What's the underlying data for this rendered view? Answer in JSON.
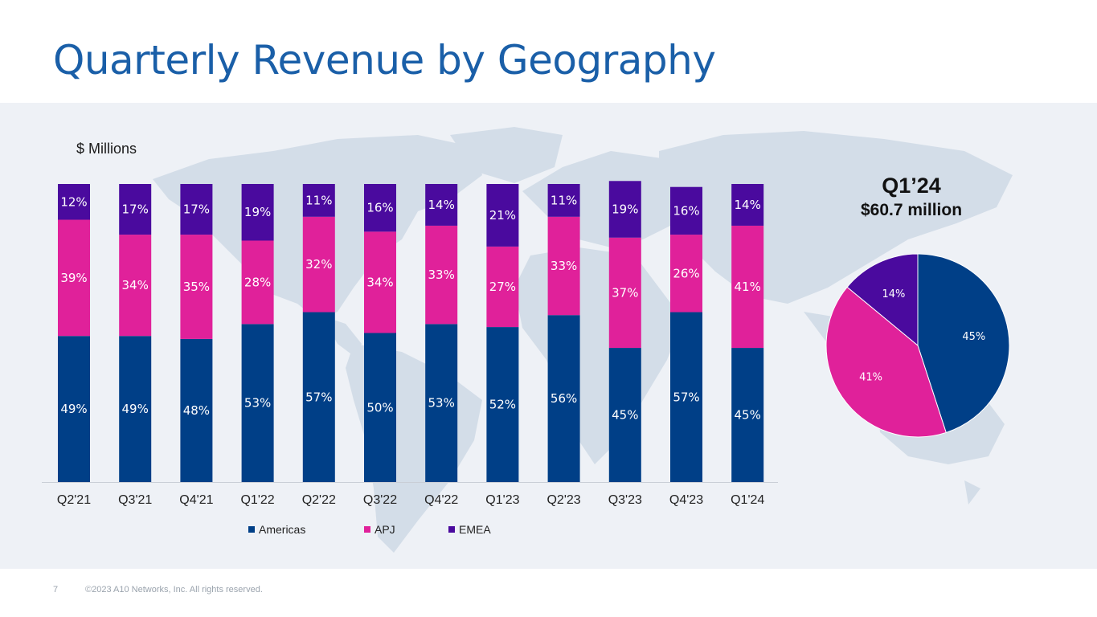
{
  "page": {
    "title": "Quarterly Revenue by Geography",
    "unit_label": "$ Millions",
    "page_number": "7",
    "copyright": "©2023 A10 Networks, Inc. All rights reserved."
  },
  "colors": {
    "Americas": "#003f87",
    "APJ": "#e0219a",
    "EMEA": "#4a0a9e",
    "title": "#1a5fa8"
  },
  "chart_data": [
    {
      "type": "bar",
      "stacked": true,
      "title": "Quarterly Revenue by Geography",
      "ylabel": "$ Millions",
      "ylim": [
        0,
        100
      ],
      "categories": [
        "Q2'21",
        "Q3'21",
        "Q4'21",
        "Q1'22",
        "Q2'22",
        "Q3'22",
        "Q4'22",
        "Q1'23",
        "Q2'23",
        "Q3'23",
        "Q4'23",
        "Q1'24"
      ],
      "series": [
        {
          "name": "Americas",
          "values": [
            49,
            49,
            48,
            53,
            57,
            50,
            53,
            52,
            56,
            45,
            57,
            45
          ],
          "labels": [
            "49%",
            "49%",
            "48%",
            "53%",
            "57%",
            "50%",
            "53%",
            "52%",
            "56%",
            "45%",
            "57%",
            "45%"
          ]
        },
        {
          "name": "APJ",
          "values": [
            39,
            34,
            35,
            28,
            32,
            34,
            33,
            27,
            33,
            37,
            26,
            41
          ],
          "labels": [
            "39%",
            "34%",
            "35%",
            "28%",
            "32%",
            "34%",
            "33%",
            "27%",
            "33%",
            "37%",
            "26%",
            "41%"
          ]
        },
        {
          "name": "EMEA",
          "values": [
            12,
            17,
            17,
            19,
            11,
            16,
            14,
            21,
            11,
            19,
            16,
            14
          ],
          "labels": [
            "12%",
            "17%",
            "17%",
            "19%",
            "11%",
            "16%",
            "14%",
            "21%",
            "11%",
            "19%",
            "16%",
            "14%"
          ]
        }
      ],
      "legend": [
        "Americas",
        "APJ",
        "EMEA"
      ],
      "legend_position": "bottom"
    },
    {
      "type": "pie",
      "title": "Q1’24",
      "subtitle": "$60.7 million",
      "slices": [
        {
          "name": "Americas",
          "value": 45,
          "label": "45%"
        },
        {
          "name": "APJ",
          "value": 41,
          "label": "41%"
        },
        {
          "name": "EMEA",
          "value": 14,
          "label": "14%"
        }
      ]
    }
  ]
}
